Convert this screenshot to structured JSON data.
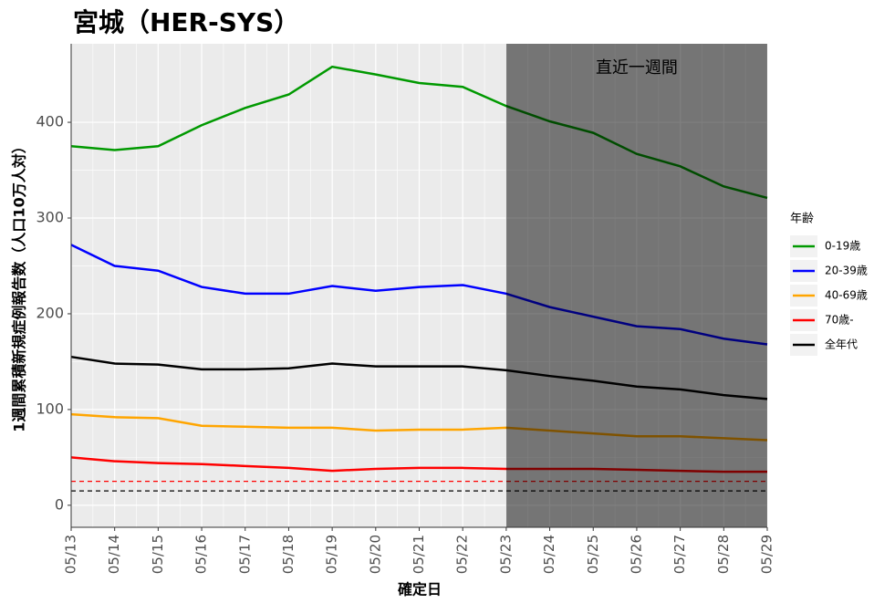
{
  "chart_data": {
    "type": "line",
    "title": "宮城（HER-SYS）",
    "x_label": "確定日",
    "y_label": "1週間累積新規症例報告数（人口10万人対）",
    "legend_title": "年齢",
    "categories": [
      "05/13",
      "05/14",
      "05/15",
      "05/16",
      "05/17",
      "05/18",
      "05/19",
      "05/20",
      "05/21",
      "05/22",
      "05/23",
      "05/24",
      "05/25",
      "05/26",
      "05/27",
      "05/28",
      "05/29"
    ],
    "series": [
      {
        "name": "0-19歳",
        "color": "#009900",
        "values": [
          375,
          371,
          375,
          397,
          415,
          429,
          458,
          450,
          441,
          437,
          417,
          401,
          389,
          367,
          354,
          333,
          321
        ]
      },
      {
        "name": "20-39歳",
        "color": "#0000ff",
        "values": [
          272,
          250,
          245,
          228,
          221,
          221,
          229,
          224,
          228,
          230,
          221,
          207,
          197,
          187,
          184,
          174,
          168
        ]
      },
      {
        "name": "40-69歳",
        "color": "#ffa500",
        "values": [
          95,
          92,
          91,
          83,
          82,
          81,
          81,
          78,
          79,
          79,
          81,
          78,
          75,
          72,
          72,
          70,
          68
        ]
      },
      {
        "name": "70歳-",
        "color": "#ff0000",
        "values": [
          50,
          46,
          44,
          43,
          41,
          39,
          36,
          38,
          39,
          39,
          38,
          38,
          38,
          37,
          36,
          35,
          35
        ]
      },
      {
        "name": "全年代",
        "color": "#000000",
        "values": [
          155,
          148,
          147,
          142,
          142,
          143,
          148,
          145,
          145,
          145,
          141,
          135,
          130,
          124,
          121,
          115,
          111
        ]
      }
    ],
    "reference_lines": [
      {
        "value": 25,
        "color": "#ff0000"
      },
      {
        "value": 15,
        "color": "#000000"
      }
    ],
    "annotation": {
      "text": "直近一週間",
      "from": "05/23",
      "to": "05/29"
    },
    "ylim": [
      -23,
      482
    ],
    "yticks": [
      0,
      100,
      200,
      300,
      400
    ],
    "grid": true,
    "legend": "right"
  }
}
